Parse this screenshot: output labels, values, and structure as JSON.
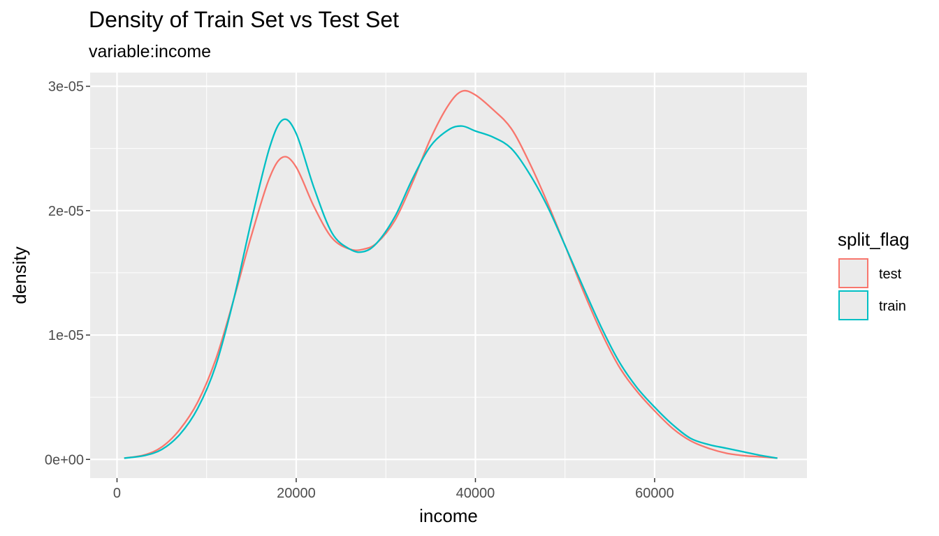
{
  "chart_data": {
    "type": "line",
    "title": "Density of Train Set vs Test Set",
    "subtitle": "variable:income",
    "xlabel": "income",
    "ylabel": "density",
    "xlim": [
      -3000,
      77000
    ],
    "ylim": [
      -1.5e-06,
      3.11e-05
    ],
    "x_ticks": [
      0,
      20000,
      40000,
      60000
    ],
    "x_tick_labels": [
      "0",
      "20000",
      "40000",
      "60000"
    ],
    "y_ticks": [
      0,
      1e-05,
      2e-05,
      3e-05
    ],
    "y_tick_labels": [
      "0e+00",
      "1e-05",
      "2e-05",
      "3e-05"
    ],
    "grid": true,
    "legend": {
      "title": "split_flag",
      "position": "right"
    },
    "series": [
      {
        "name": "test",
        "color": "#F8766D",
        "x": [
          800,
          3000,
          5000,
          7000,
          9000,
          11000,
          13000,
          15000,
          17000,
          18500,
          20000,
          22000,
          24000,
          26000,
          27500,
          29000,
          31000,
          33000,
          35000,
          37000,
          38500,
          40000,
          42000,
          44000,
          46000,
          48000,
          50000,
          52000,
          54000,
          56000,
          58000,
          60000,
          62000,
          64000,
          66000,
          68000,
          70000,
          72000,
          73700
        ],
        "y": [
          1e-07,
          3.5e-07,
          1e-06,
          2.4e-06,
          4.6e-06,
          8e-06,
          1.28e-05,
          1.8e-05,
          2.26e-05,
          2.43e-05,
          2.35e-05,
          2.03e-05,
          1.78e-05,
          1.69e-05,
          1.69e-05,
          1.74e-05,
          1.92e-05,
          2.23e-05,
          2.58e-05,
          2.85e-05,
          2.96e-05,
          2.93e-05,
          2.81e-05,
          2.66e-05,
          2.39e-05,
          2.07e-05,
          1.72e-05,
          1.36e-05,
          1.03e-05,
          7.5e-06,
          5.5e-06,
          3.9e-06,
          2.5e-06,
          1.5e-06,
          9e-07,
          5e-07,
          3e-07,
          2e-07,
          1e-07
        ]
      },
      {
        "name": "train",
        "color": "#00BFC4",
        "x": [
          800,
          3000,
          5000,
          7000,
          9000,
          11000,
          13000,
          15000,
          17000,
          18500,
          20000,
          22000,
          24000,
          26000,
          27500,
          29000,
          31000,
          33000,
          35000,
          37000,
          38500,
          40000,
          42000,
          44000,
          46000,
          48000,
          50000,
          52000,
          54000,
          56000,
          58000,
          60000,
          62000,
          64000,
          66000,
          68000,
          70000,
          72000,
          73700
        ],
        "y": [
          1e-07,
          3e-07,
          8e-07,
          2e-06,
          4.1e-06,
          7.5e-06,
          1.28e-05,
          1.92e-05,
          2.5e-05,
          2.73e-05,
          2.62e-05,
          2.18e-05,
          1.82e-05,
          1.69e-05,
          1.67e-05,
          1.74e-05,
          1.95e-05,
          2.26e-05,
          2.52e-05,
          2.65e-05,
          2.68e-05,
          2.64e-05,
          2.59e-05,
          2.5e-05,
          2.3e-05,
          2.04e-05,
          1.72e-05,
          1.39e-05,
          1.07e-05,
          7.9e-06,
          5.8e-06,
          4.2e-06,
          2.8e-06,
          1.7e-06,
          1.2e-06,
          9e-07,
          6e-07,
          3e-07,
          1e-07
        ]
      }
    ]
  }
}
